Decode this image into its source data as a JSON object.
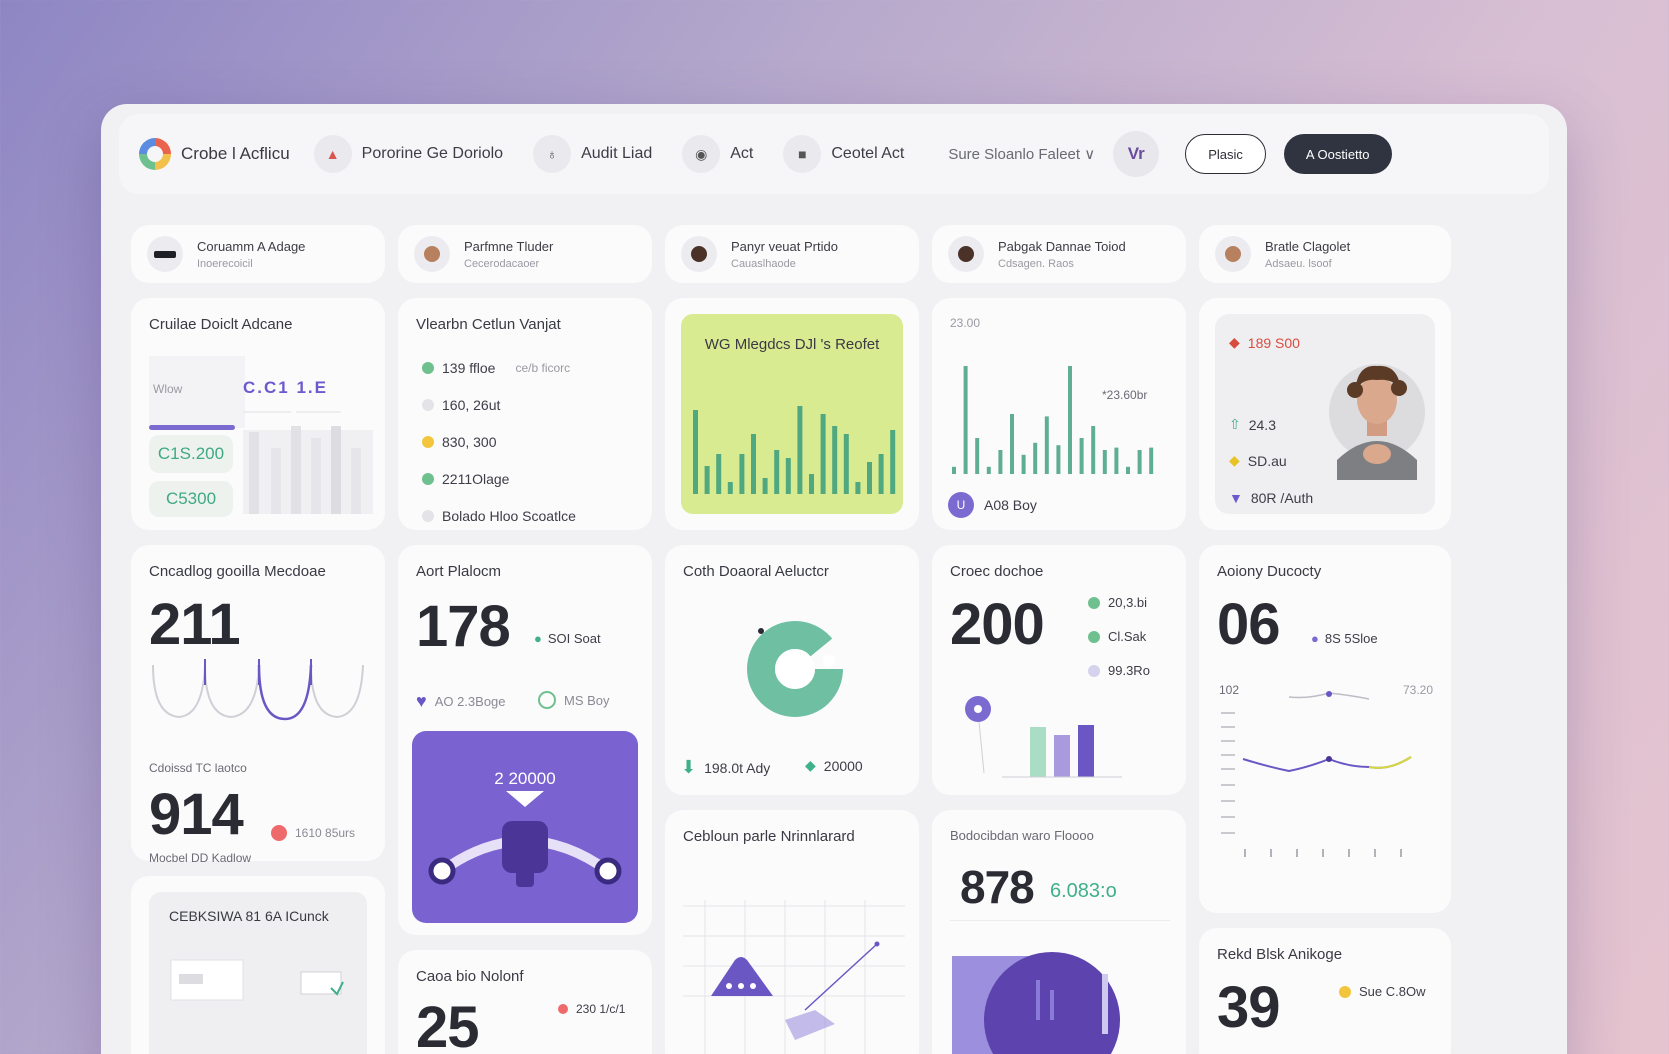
{
  "topbar": {
    "brand": "Crobe l Acflicu",
    "nav": [
      {
        "label": "Pororine Ge Doriolo",
        "icon": "chart-icon"
      },
      {
        "label": "Audit Liad",
        "icon": "cup-icon"
      },
      {
        "label": "Act",
        "icon": "eye-icon"
      },
      {
        "label": "Ceotel Act",
        "icon": "bag-icon"
      }
    ],
    "search_select": "Sure Sloanlo Faleet ∨",
    "avatar_label": "Vr",
    "btn_outline": "Plasic",
    "btn_dark": "A Oostietto"
  },
  "profiles": [
    {
      "name": "Coruamm A Adage",
      "sub": "Inoerecoicil"
    },
    {
      "name": "Parfmne Tluder",
      "sub": "Cecerodacaoer"
    },
    {
      "name": "Panyr veuat Prtido",
      "sub": "Cauaslhaode"
    },
    {
      "name": "Pabgak Dannae Toiod",
      "sub": "Cdsagen. Raos"
    },
    {
      "name": "Bratle Clagolet",
      "sub": "Adsaeu. lsoof"
    }
  ],
  "card1": {
    "title": "Cruilae Doiclt Adcane",
    "tab_label": "Wlow",
    "heading": "C.C1 1.E",
    "pill1": "C1S.200",
    "pill2": "C5300"
  },
  "card2": {
    "title": "Vlearbn Cetlun Vanjat",
    "items": [
      {
        "label": "139 ffloe",
        "note": "ce/b ficorc",
        "color": "#6fc08f"
      },
      {
        "label": "160, 26ut",
        "note": "",
        "color": "#e3e3e8"
      },
      {
        "label": "830, 300",
        "note": "",
        "color": "#f2c53d"
      },
      {
        "label": "2211Olage",
        "note": "",
        "color": "#6fc08f"
      },
      {
        "label": "Bolado Hloo Scoatlce",
        "note": "",
        "color": "#e3e3e8"
      }
    ]
  },
  "card3": {
    "title": "WG Mlegdcs DJl 's Reofet",
    "bars": [
      42,
      14,
      20,
      6,
      20,
      30,
      8,
      22,
      18,
      44,
      10,
      40,
      34,
      30,
      6,
      16,
      20,
      32
    ]
  },
  "card4": {
    "ylabel": "23.00",
    "annot": "*23.60br",
    "bars": [
      6,
      90,
      30,
      6,
      20,
      50,
      16,
      26,
      48,
      24,
      90,
      30,
      40,
      20,
      22,
      6,
      20,
      22
    ],
    "footer": "A08 Boy"
  },
  "card5": {
    "items": [
      {
        "label": "189 S00",
        "color": "#e35a4b",
        "icon": "diamond-icon"
      },
      {
        "label": "24.3",
        "color": "#3fb08a",
        "icon": "upload-icon"
      },
      {
        "label": "SD.au",
        "color": "#e8c328",
        "icon": "diamond-icon"
      },
      {
        "label": "80R /Auth",
        "color": "#6a5acd",
        "icon": "triangle-icon"
      }
    ]
  },
  "card6": {
    "title": "Cncadlog gooilla Mecdoae",
    "value": "211",
    "sub_title": "Cdoissd TC laotco",
    "value2": "914",
    "badge": "1610 85urs",
    "footer": "Mocbel DD Kadlow"
  },
  "card7": {
    "title": "Aort Plalocm",
    "value": "178",
    "side": "SOI Soat",
    "legend1": "AO 2.3Boge",
    "legend2": "MS Boy",
    "panel_value": "2 20000"
  },
  "card8": {
    "title": "Coth Doaoral Aeluctcr",
    "footer1": "198.0t Ady",
    "footer2": "20000"
  },
  "card9": {
    "title": "Croec dochoe",
    "value": "200",
    "legend": [
      {
        "label": "20,3.bi",
        "color": "#6fc08f"
      },
      {
        "label": "Cl.Sak",
        "color": "#6fc08f"
      },
      {
        "label": "99.3Ro",
        "color": "#d5d2ee"
      }
    ],
    "bars": [
      {
        "h": 50,
        "c": "#a9ddc4"
      },
      {
        "h": 42,
        "c": "#a99ae0"
      },
      {
        "h": 52,
        "c": "#6a57c4"
      }
    ]
  },
  "card10": {
    "title": "Aoiony Ducocty",
    "value": "06",
    "side": "8S 5Sloe",
    "y_left": "102",
    "y_right": "73.20"
  },
  "card11": {
    "title": "Cebloun parle Nrinnlarard"
  },
  "card12": {
    "title": "Bodocibdan waro Floooo",
    "value": "878",
    "value_side": "6.083:o"
  },
  "card13": {
    "title": "CEBKSIWA 81 6A ICunck"
  },
  "card14": {
    "title": "Caoa bio Nolonf",
    "value": "25",
    "side": "230 1/c/1"
  },
  "card15": {
    "title": "Rekd Blsk Anikoge",
    "value": "39",
    "side": "Sue C.8Ow"
  }
}
